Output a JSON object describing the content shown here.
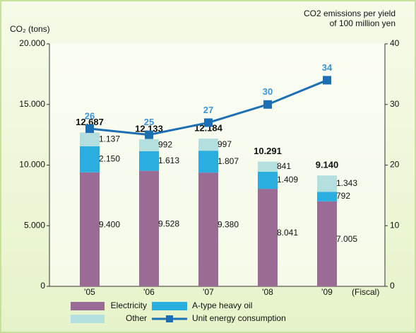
{
  "chart_data": {
    "type": "stacked-bar-line",
    "y_label": "CO₂ (tons)",
    "y2_label": [
      "CO2 emissions per yield",
      "of 100 million yen"
    ],
    "x_label": "(Fiscal)",
    "categories": [
      "'05",
      "'06",
      "'07",
      "'08",
      "'09"
    ],
    "series": [
      {
        "name": "Electricity",
        "color": "#9a6b95",
        "values": [
          9400,
          9528,
          9380,
          8041,
          7005
        ],
        "value_labels": [
          "9.400",
          "9.528",
          "9.380",
          "8.041",
          "7.005"
        ]
      },
      {
        "name": "A-type heavy oil",
        "color": "#2aaee0",
        "values": [
          2150,
          1613,
          1807,
          1409,
          792
        ],
        "value_labels": [
          "2.150",
          "1.613",
          "1.807",
          "1.409",
          "792"
        ]
      },
      {
        "name": "Other",
        "color": "#b4dfdf",
        "values": [
          1137,
          992,
          997,
          841,
          1343
        ],
        "value_labels": [
          "1.137",
          "992",
          "997",
          "841",
          "1.343"
        ]
      },
      {
        "name": "Unit energy consumption",
        "color": "#1c6fb3",
        "axis": "y2",
        "values": [
          26,
          25,
          27,
          30,
          34
        ]
      }
    ],
    "totals": [
      {
        "value": 12687,
        "label": "12,687"
      },
      {
        "value": 12133,
        "label": "12.133"
      },
      {
        "value": 12184,
        "label": "12.184"
      },
      {
        "value": 10291,
        "label": "10.291"
      },
      {
        "value": 9140,
        "label": "9.140"
      }
    ],
    "ylim": [
      0,
      20000
    ],
    "yticks": [
      {
        "value": 0,
        "label": "0"
      },
      {
        "value": 5000,
        "label": "5.000"
      },
      {
        "value": 10000,
        "label": "10.000"
      },
      {
        "value": 15000,
        "label": "15.000"
      },
      {
        "value": 20000,
        "label": "20.000"
      }
    ],
    "y2lim": [
      0,
      40
    ],
    "y2ticks": [
      0,
      10,
      20,
      30,
      40
    ]
  }
}
